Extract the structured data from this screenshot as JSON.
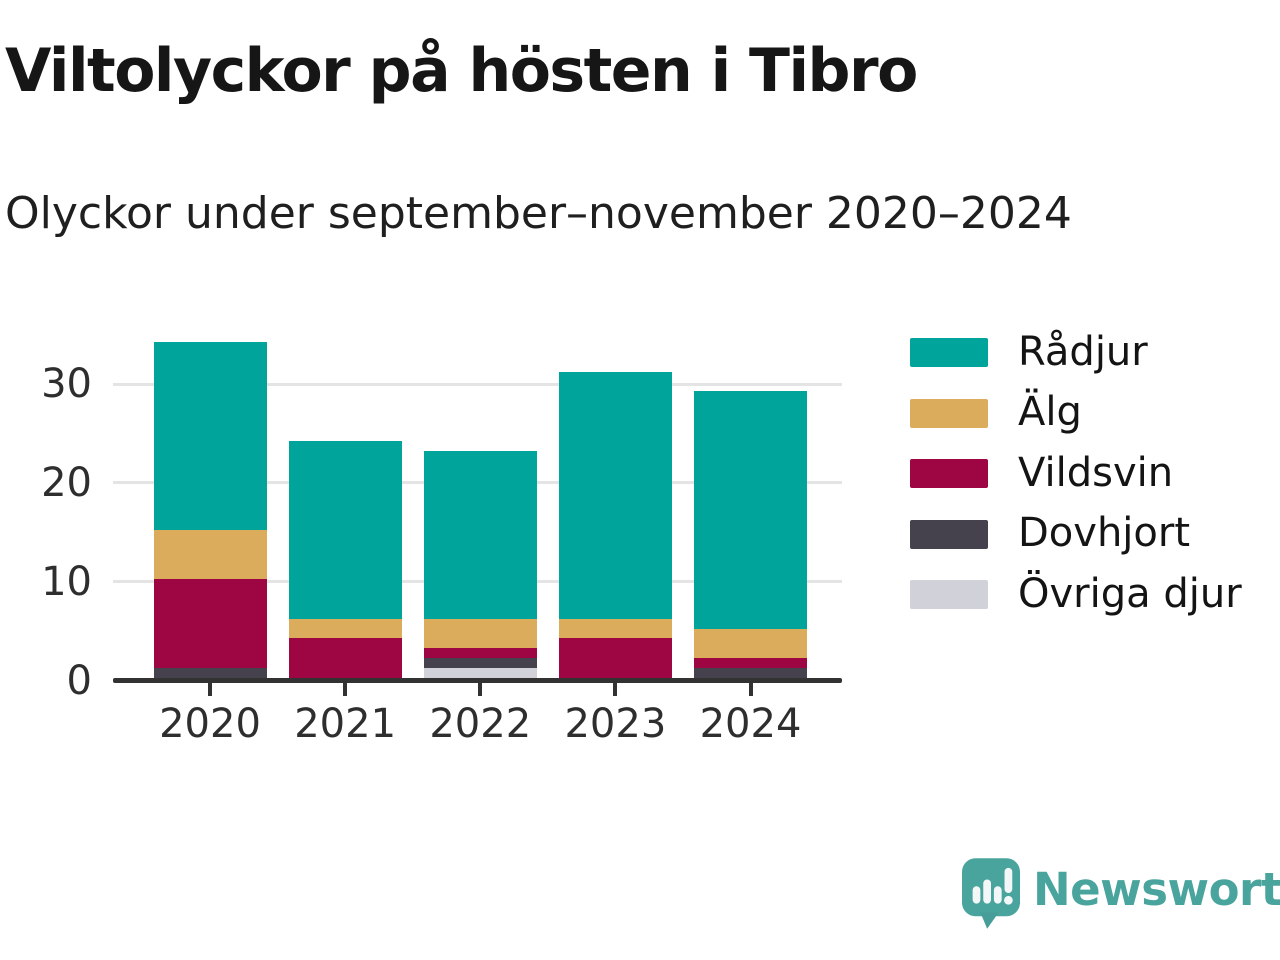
{
  "header": {
    "title": "Viltolyckor på hösten i Tibro",
    "subtitle": "Olyckor under september–november 2020–2024"
  },
  "chart_data": {
    "type": "bar",
    "stacked": true,
    "title": "Viltolyckor på hösten i Tibro",
    "subtitle": "Olyckor under september–november 2020–2024",
    "categories": [
      "2020",
      "2021",
      "2022",
      "2023",
      "2024"
    ],
    "series": [
      {
        "name": "Rådjur",
        "color": "#00a49b",
        "values": [
          19,
          18,
          17,
          25,
          24
        ]
      },
      {
        "name": "Älg",
        "color": "#dbac5c",
        "values": [
          5,
          2,
          3,
          2,
          3
        ]
      },
      {
        "name": "Vildsvin",
        "color": "#9e0543",
        "values": [
          9,
          4,
          1,
          4,
          1
        ]
      },
      {
        "name": "Dovhjort",
        "color": "#45424e",
        "values": [
          1,
          0,
          1,
          0,
          1
        ]
      },
      {
        "name": "Övriga djur",
        "color": "#d1d1da",
        "values": [
          0,
          0,
          1,
          0,
          0
        ]
      }
    ],
    "stack_order": "last series at bottom, first series (Rådjur) on top",
    "totals": [
      34,
      24,
      23,
      31,
      29
    ],
    "y_ticks": [
      0,
      10,
      20,
      30
    ],
    "ylim": [
      0,
      35
    ],
    "xlabel": "",
    "ylabel": "",
    "grid": true,
    "legend_position": "right"
  },
  "colors": {
    "grid": "#e4e4e4",
    "axis": "#323232",
    "tick_text": "#2e2e2e",
    "title_text": "#161616",
    "brand_teal": "#4aa49e"
  },
  "footer": {
    "brand": "Newsworthy",
    "logo_icon": "speech-bubble-bar-chart-exclamation-icon"
  }
}
